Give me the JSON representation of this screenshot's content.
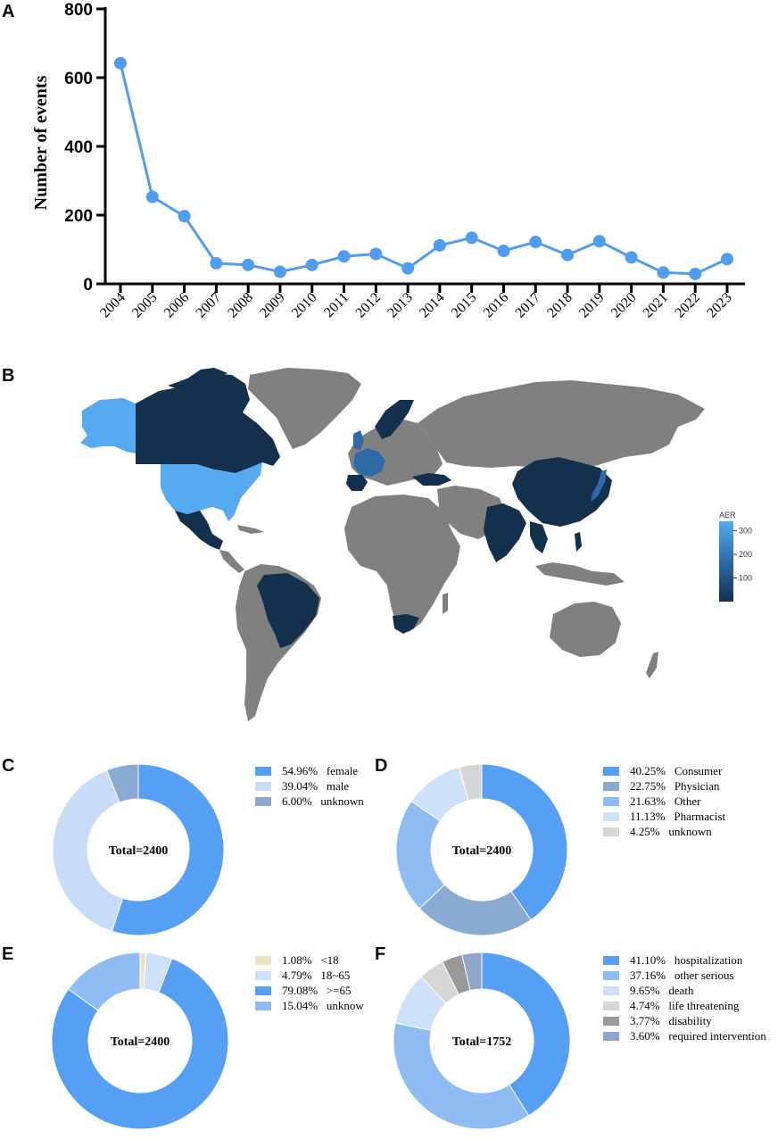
{
  "panels": {
    "a": "A",
    "b": "B",
    "c": "C",
    "d": "D",
    "e": "E",
    "f": "F"
  },
  "colors": {
    "line": "#4f9cf0",
    "map_land": "#808080",
    "map_high": "#55aaf2",
    "map_mid": "#2f6aa8",
    "map_low": "#13304c",
    "pie": {
      "blue_main": "#55a0f5",
      "light_blue": "#c6dcf7",
      "steel_blue": "#8aaad2",
      "mid_blue": "#8fbcf3",
      "pale_blue": "#cde2fa",
      "light_gray": "#d6d6d6",
      "mid_gray": "#9a9a9a",
      "cream": "#ede3c3",
      "slate": "#8fa6c8"
    }
  },
  "chart_data": [
    {
      "id": "A",
      "type": "line",
      "title": "",
      "xlabel": "",
      "ylabel": "Number of events",
      "x": [
        "2004",
        "2005",
        "2006",
        "2007",
        "2008",
        "2009",
        "2010",
        "2011",
        "2012",
        "2013",
        "2014",
        "2015",
        "2016",
        "2017",
        "2018",
        "2019",
        "2020",
        "2021",
        "2022",
        "2023"
      ],
      "values": [
        642,
        253,
        197,
        60,
        55,
        35,
        55,
        80,
        87,
        45,
        112,
        134,
        96,
        122,
        84,
        124,
        77,
        33,
        29,
        72
      ],
      "ylim": [
        0,
        800
      ],
      "yticks": [
        "0",
        "200",
        "400",
        "600",
        "800"
      ],
      "grid": false
    },
    {
      "id": "C",
      "type": "pie",
      "center_label": "Total=2400",
      "slices": [
        {
          "label": "54.96%   female",
          "value": 54.96,
          "color": "#55a0f5"
        },
        {
          "label": "39.04%   male",
          "value": 39.04,
          "color": "#c6dcf7"
        },
        {
          "label": "6.00%   unknown",
          "value": 6.0,
          "color": "#8aaad2"
        }
      ]
    },
    {
      "id": "D",
      "type": "pie",
      "center_label": "Total=2400",
      "slices": [
        {
          "label": "40.25%   Consumer",
          "value": 40.25,
          "color": "#55a0f5"
        },
        {
          "label": "22.75%   Physician",
          "value": 22.75,
          "color": "#8aaad2"
        },
        {
          "label": "21.63%   Other",
          "value": 21.63,
          "color": "#8fbcf3"
        },
        {
          "label": "11.13%   Pharmacist",
          "value": 11.13,
          "color": "#cde2fa"
        },
        {
          "label": "4.25%   unknown",
          "value": 4.25,
          "color": "#d6d6d6"
        }
      ]
    },
    {
      "id": "E",
      "type": "pie",
      "center_label": "Total=2400",
      "slices": [
        {
          "label": "1.08%   <18",
          "value": 1.08,
          "color": "#ede3c3"
        },
        {
          "label": "4.79%   18~65",
          "value": 4.79,
          "color": "#cde2fa"
        },
        {
          "label": "79.08%   >=65",
          "value": 79.08,
          "color": "#55a0f5"
        },
        {
          "label": "15.04%   unknow",
          "value": 15.04,
          "color": "#8fbcf3"
        }
      ]
    },
    {
      "id": "F",
      "type": "pie",
      "center_label": "Total=1752",
      "slices": [
        {
          "label": "41.10%   hospitalization",
          "value": 41.1,
          "color": "#55a0f5"
        },
        {
          "label": "37.16%   other serious",
          "value": 37.16,
          "color": "#8fbcf3"
        },
        {
          "label": "9.65%   death",
          "value": 9.65,
          "color": "#cde2fa"
        },
        {
          "label": "4.74%   life threatening",
          "value": 4.74,
          "color": "#d6d6d6"
        },
        {
          "label": "3.77%   disability",
          "value": 3.77,
          "color": "#9a9a9a"
        },
        {
          "label": "3.60%   required intervention",
          "value": 3.6,
          "color": "#8fa6c8"
        }
      ]
    }
  ],
  "map": {
    "legend_title": "AER",
    "legend_ticks": [
      "300",
      "200",
      "100"
    ],
    "legend_tick_values": [
      300,
      200,
      100
    ],
    "legend_range": [
      0,
      340
    ]
  }
}
